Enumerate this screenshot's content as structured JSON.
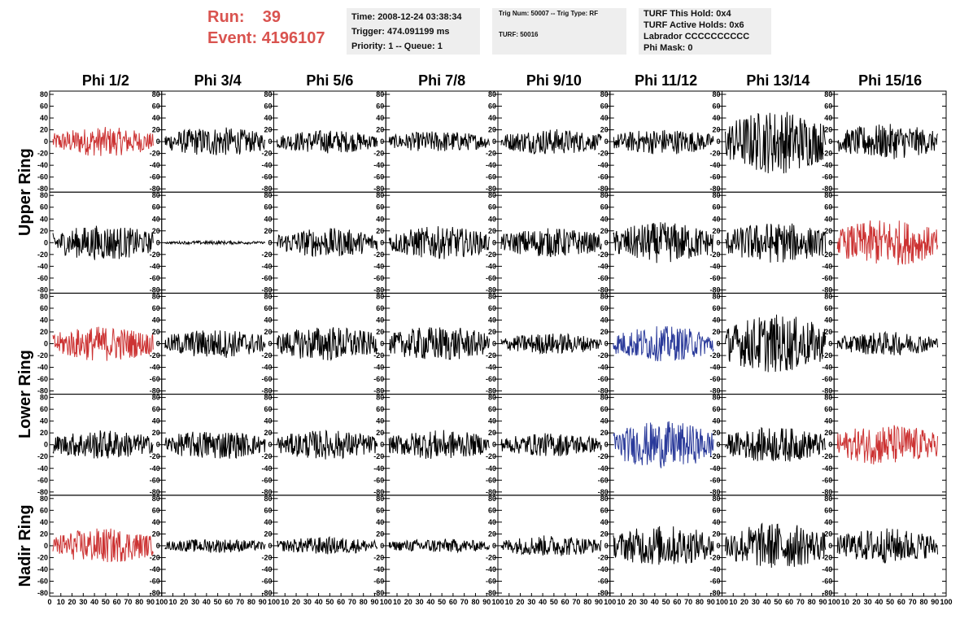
{
  "header": {
    "run_label": "Run:",
    "run_value": "39",
    "event_label": "Event:",
    "event_value": "4196107",
    "time": "Time: 2008-12-24 03:38:34",
    "trigger": "Trigger: 474.091199 ms",
    "priority": "Priority: 1 -- Queue: 1",
    "trig_num": "Trig Num: 50007 -- Trig Type: RF",
    "turf": "TURF: 50016",
    "turf_hold": "TURF This Hold: 0x4",
    "turf_active": "TURF Active Holds: 0x6",
    "labrador": "Labrador CCCCCCCCCC",
    "phi_mask": "Phi Mask: 0"
  },
  "chart_data": {
    "type": "line",
    "columns": [
      "Phi 1/2",
      "Phi 3/4",
      "Phi 5/6",
      "Phi 7/8",
      "Phi 9/10",
      "Phi 11/12",
      "Phi 13/14",
      "Phi 15/16"
    ],
    "row_groups": [
      {
        "label": "Upper Ring",
        "rows": [
          0,
          1
        ]
      },
      {
        "label": "Lower Ring",
        "rows": [
          2,
          3
        ]
      },
      {
        "label": "Nadir Ring",
        "rows": [
          4
        ]
      }
    ],
    "ylim": [
      -80,
      80
    ],
    "yticks": [
      -80,
      -60,
      -40,
      -20,
      0,
      20,
      40,
      60,
      80
    ],
    "xlim": [
      0,
      100
    ],
    "xtick_labels": [
      "0",
      "10",
      "20",
      "30",
      "40",
      "50",
      "60",
      "70",
      "80",
      "90",
      "100"
    ],
    "colors": {
      "black": "#000000",
      "red": "#cc3333",
      "blue": "#2a3a9a"
    },
    "trace_colors": [
      [
        "red",
        "black",
        "black",
        "black",
        "black",
        "black",
        "black",
        "black"
      ],
      [
        "black",
        "black",
        "black",
        "black",
        "black",
        "black",
        "black",
        "red"
      ],
      [
        "red",
        "black",
        "black",
        "black",
        "black",
        "blue",
        "black",
        "black"
      ],
      [
        "black",
        "black",
        "black",
        "black",
        "black",
        "blue",
        "black",
        "red"
      ],
      [
        "red",
        "black",
        "black",
        "black",
        "black",
        "black",
        "black",
        "black"
      ]
    ],
    "trace_amplitudes": [
      [
        25,
        25,
        20,
        18,
        22,
        22,
        55,
        30
      ],
      [
        30,
        3,
        25,
        28,
        25,
        35,
        35,
        40
      ],
      [
        30,
        25,
        30,
        30,
        18,
        30,
        50,
        20
      ],
      [
        25,
        25,
        25,
        25,
        20,
        40,
        30,
        35
      ],
      [
        30,
        12,
        15,
        12,
        18,
        35,
        40,
        30
      ]
    ]
  }
}
